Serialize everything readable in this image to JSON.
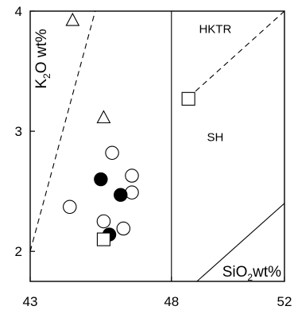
{
  "chart_data": {
    "type": "scatter",
    "xlabel": {
      "main": "SiO",
      "sub": "2",
      "tail": "wt%"
    },
    "ylabel": {
      "main": "K",
      "sub": "2",
      "tail": "O wt%"
    },
    "xlim": [
      43,
      52
    ],
    "ylim": [
      1.75,
      4
    ],
    "x_ticks": [
      "43",
      "48",
      "52"
    ],
    "x_tick_values": [
      43,
      48,
      52
    ],
    "y_ticks": [
      "2",
      "3",
      "4"
    ],
    "y_tick_values": [
      2,
      3,
      4
    ],
    "grid": false,
    "field_labels": [
      {
        "text": "HKTR",
        "x": 49.55,
        "y": 3.85
      },
      {
        "text": "SH",
        "x": 49.55,
        "y": 2.95
      }
    ],
    "boundary_lines": [
      {
        "style": "dashed",
        "points": [
          [
            43.0,
            2.0
          ],
          [
            45.3,
            4.0
          ]
        ]
      },
      {
        "style": "solid",
        "points": [
          [
            48.0,
            1.75
          ],
          [
            48.0,
            4.0
          ]
        ]
      },
      {
        "style": "dashed",
        "points": [
          [
            48.6,
            3.28
          ],
          [
            52.0,
            4.0
          ]
        ]
      },
      {
        "style": "solid",
        "points": [
          [
            48.9,
            1.75
          ],
          [
            52.0,
            2.4
          ]
        ]
      }
    ],
    "series": [
      {
        "marker": "open-triangle",
        "x": [
          44.5,
          45.6
        ],
        "y": [
          3.92,
          3.11
        ]
      },
      {
        "marker": "open-circle",
        "x": [
          45.9,
          46.6,
          44.4,
          45.6,
          46.6,
          46.3
        ],
        "y": [
          2.82,
          2.63,
          2.37,
          2.25,
          2.49,
          2.19
        ]
      },
      {
        "marker": "filled-circle",
        "x": [
          45.5,
          46.2,
          45.8
        ],
        "y": [
          2.6,
          2.47,
          2.14
        ]
      },
      {
        "marker": "open-square",
        "x": [
          45.6,
          48.6
        ],
        "y": [
          2.1,
          3.27
        ]
      }
    ]
  }
}
